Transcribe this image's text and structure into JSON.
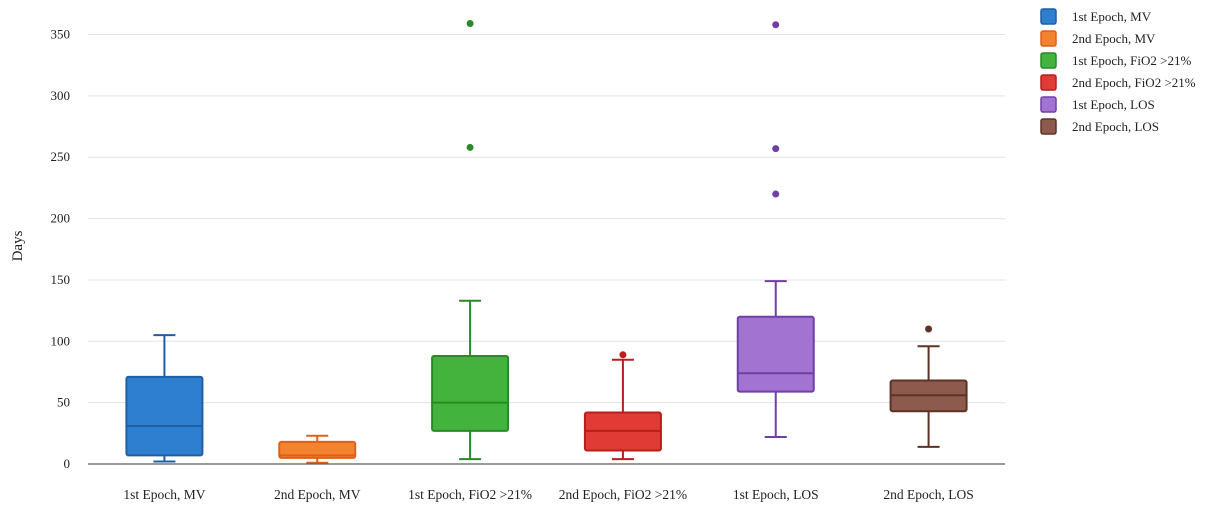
{
  "chart_data": {
    "type": "box",
    "ylabel": "Days",
    "ylim": [
      0,
      370
    ],
    "yticks": [
      0,
      50,
      100,
      150,
      200,
      250,
      300,
      350
    ],
    "grid": true,
    "legend_position": "top-right",
    "categories": [
      "1st Epoch, MV",
      "2nd Epoch, MV",
      "1st Epoch, FiO2 >21%",
      "2nd Epoch, FiO2 >21%",
      "1st Epoch, LOS",
      "2nd Epoch, LOS"
    ],
    "series": [
      {
        "name": "1st Epoch, MV",
        "color": "#2f7fd1",
        "stroke": "#1f5fa6",
        "min": 2,
        "q1": 7,
        "median": 31,
        "q3": 71,
        "max": 105,
        "outliers": []
      },
      {
        "name": "2nd Epoch, MV",
        "color": "#f2832f",
        "stroke": "#e0601a",
        "min": 1,
        "q1": 5,
        "median": 7,
        "q3": 18,
        "max": 23,
        "outliers": []
      },
      {
        "name": "1st Epoch, FiO2 >21%",
        "color": "#43b33d",
        "stroke": "#2a8a27",
        "min": 4,
        "q1": 27,
        "median": 50,
        "q3": 88,
        "max": 133,
        "outliers": [
          258,
          359
        ]
      },
      {
        "name": "2nd Epoch, FiO2 >21%",
        "color": "#e03b35",
        "stroke": "#b81e1c",
        "min": 4,
        "q1": 11,
        "median": 27,
        "q3": 42,
        "max": 85,
        "outliers": [
          89
        ]
      },
      {
        "name": "1st Epoch, LOS",
        "color": "#a273d0",
        "stroke": "#6f3fa8",
        "min": 22,
        "q1": 59,
        "median": 74,
        "q3": 120,
        "max": 149,
        "outliers": [
          220,
          257,
          358
        ]
      },
      {
        "name": "2nd Epoch, LOS",
        "color": "#8d5b4e",
        "stroke": "#5c3326",
        "min": 14,
        "q1": 43,
        "median": 56,
        "q3": 68,
        "max": 96,
        "outliers": [
          110
        ]
      }
    ]
  }
}
